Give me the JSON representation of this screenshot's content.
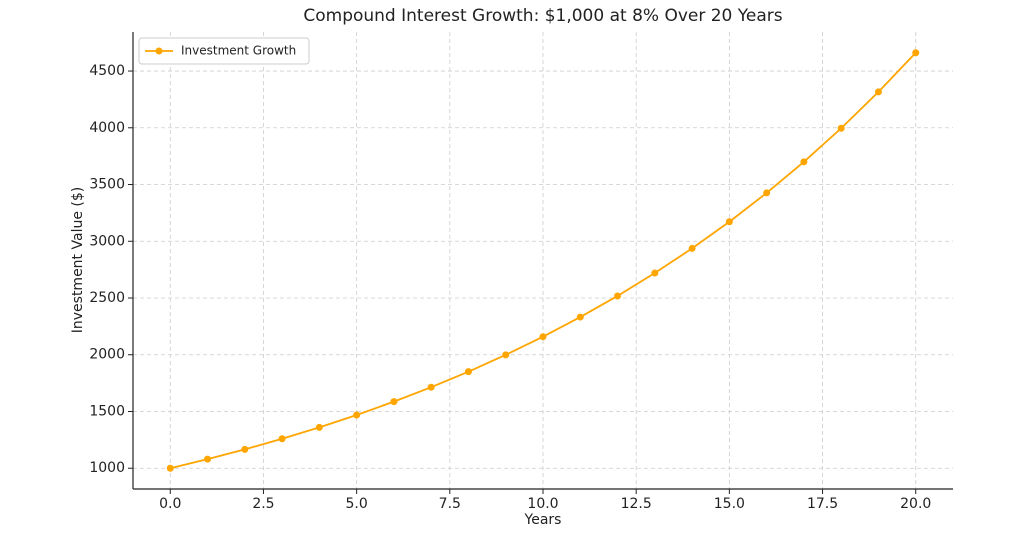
{
  "chart_data": {
    "type": "line",
    "title": "Compound Interest Growth: $1,000 at 8% Over 20 Years",
    "xlabel": "Years",
    "ylabel": "Investment Value ($)",
    "x": [
      0,
      1,
      2,
      3,
      4,
      5,
      6,
      7,
      8,
      9,
      10,
      11,
      12,
      13,
      14,
      15,
      16,
      17,
      18,
      19,
      20
    ],
    "series": [
      {
        "name": "Investment Growth",
        "color": "#ffa500",
        "values": [
          1000,
          1080,
          1166,
          1260,
          1360,
          1469,
          1587,
          1714,
          1851,
          1999,
          2159,
          2332,
          2518,
          2720,
          2937,
          3172,
          3426,
          3700,
          3996,
          4316,
          4661
        ]
      }
    ],
    "xlim": [
      -1,
      21
    ],
    "xticks": [
      {
        "value": 0,
        "label": "0.0"
      },
      2.5,
      {
        "value": 5,
        "label": "5.0"
      },
      7.5,
      {
        "value": 10,
        "label": "10.0"
      },
      12.5,
      {
        "value": 15,
        "label": "15.0"
      },
      17.5,
      {
        "value": 20,
        "label": "20.0"
      }
    ],
    "ylim": [
      817,
      4844
    ],
    "yticks": [
      1000,
      1500,
      2000,
      2500,
      3000,
      3500,
      4000,
      4500
    ],
    "grid": true,
    "legend": "upper left"
  }
}
